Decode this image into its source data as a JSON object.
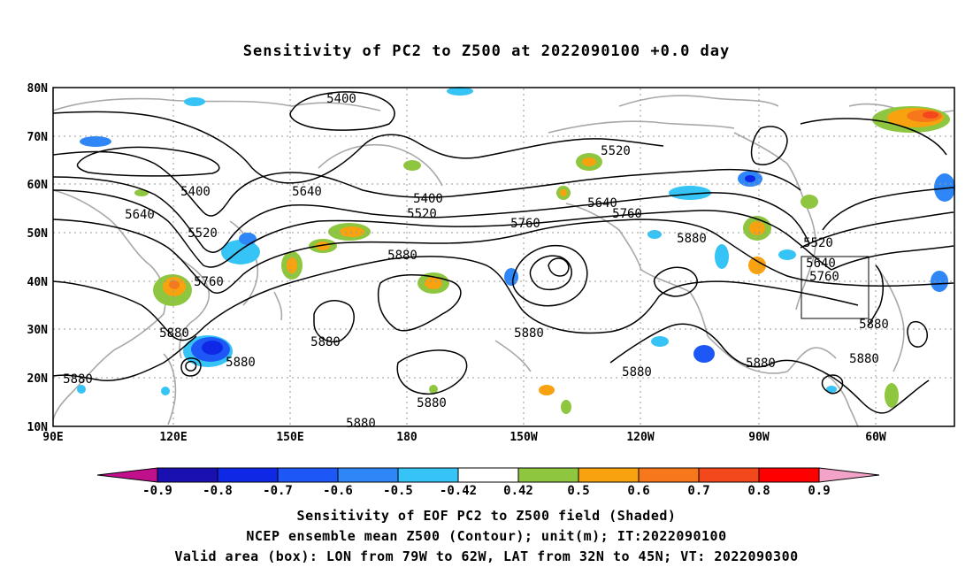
{
  "title": "Sensitivity of PC2 to Z500 at 2022090100 +0.0 day",
  "axes": {
    "lat_labels": [
      "80N",
      "70N",
      "60N",
      "50N",
      "40N",
      "30N",
      "20N",
      "10N"
    ],
    "lon_labels": [
      "90E",
      "120E",
      "150E",
      "180",
      "150W",
      "120W",
      "90W",
      "60W"
    ]
  },
  "contour_labels": [
    "5400",
    "5520",
    "5640",
    "5760",
    "5880"
  ],
  "colorbar": {
    "tick_labels": [
      "-0.9",
      "-0.8",
      "-0.7",
      "-0.6",
      "-0.5",
      "-0.42",
      "0.42",
      "0.5",
      "0.6",
      "0.7",
      "0.8",
      "0.9"
    ],
    "colors": [
      "#c0108c",
      "#1a0fb0",
      "#0f28e6",
      "#1d57f5",
      "#2f86f6",
      "#35c4f5",
      "#ffffff",
      "#8fc63f",
      "#f9a20f",
      "#f7781a",
      "#f3481c",
      "#ff0000",
      "#f4a3c8"
    ]
  },
  "captions": {
    "line1": "Sensitivity of EOF PC2 to Z500 field (Shaded)",
    "line2": "NCEP ensemble mean Z500 (Contour); unit(m); IT:2022090100",
    "line3": "Valid area (box): LON from 79W to 62W, LAT from 32N to 45N; VT: 2022090300"
  }
}
